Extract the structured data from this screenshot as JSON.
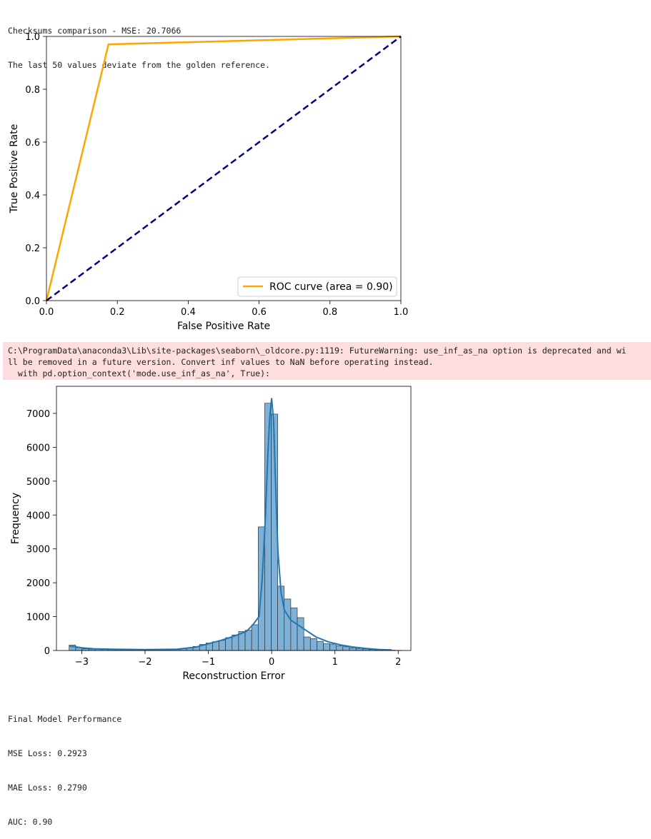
{
  "output_top": {
    "lines": [
      "Checksums comparison - MSE: 20.7066",
      "The last 50 values deviate from the golden reference."
    ]
  },
  "warning": {
    "lines": [
      "C:\\ProgramData\\anaconda3\\Lib\\site-packages\\seaborn\\_oldcore.py:1119: FutureWarning: use_inf_as_na option is deprecated and wi",
      "ll be removed in a future version. Convert inf values to NaN before operating instead.",
      "  with pd.option_context('mode.use_inf_as_na', True):"
    ]
  },
  "output_bottom": {
    "lines": [
      "Final Model Performance",
      "MSE Loss: 0.2923",
      "MAE Loss: 0.2790",
      "AUC: 0.90"
    ]
  },
  "colors": {
    "roc": "#ffa500",
    "diag": "#000080",
    "hist_fill": "#7fb0d5",
    "kde": "#1f77b4",
    "warning_bg": "#fddddd"
  },
  "chart_data": [
    {
      "type": "line",
      "title": "",
      "xlabel": "False Positive Rate",
      "ylabel": "True Positive Rate",
      "xlim": [
        0,
        1
      ],
      "ylim": [
        0,
        1
      ],
      "xticks": [
        "0.0",
        "0.2",
        "0.4",
        "0.6",
        "0.8",
        "1.0"
      ],
      "yticks": [
        "0.0",
        "0.2",
        "0.4",
        "0.6",
        "0.8",
        "1.0"
      ],
      "grid": false,
      "legend_position": "lower-right",
      "series": [
        {
          "name": "ROC curve (area = 0.90)",
          "x": [
            0,
            0.175,
            1
          ],
          "y": [
            0,
            0.97,
            1
          ],
          "color": "#ffa500",
          "style": "solid"
        },
        {
          "x": [
            0,
            1
          ],
          "y": [
            0,
            1
          ],
          "color": "#000080",
          "style": "dashed"
        }
      ]
    },
    {
      "type": "bar",
      "title": "",
      "xlabel": "Reconstruction Error",
      "ylabel": "Frequency",
      "xlim": [
        -3.4,
        2.2
      ],
      "ylim": [
        0,
        7800
      ],
      "xticks": [
        "−3",
        "−2",
        "−1",
        "0",
        "1",
        "2"
      ],
      "yticks": [
        "0",
        "1000",
        "2000",
        "3000",
        "4000",
        "5000",
        "6000",
        "7000"
      ],
      "grid": false,
      "bin_start": -3.2,
      "bin_width": 0.103,
      "values": [
        160,
        80,
        50,
        40,
        40,
        35,
        30,
        25,
        25,
        25,
        20,
        20,
        20,
        25,
        25,
        30,
        40,
        60,
        80,
        120,
        180,
        220,
        260,
        300,
        380,
        460,
        560,
        600,
        760,
        3650,
        7300,
        6980,
        1900,
        1520,
        1260,
        970,
        400,
        350,
        270,
        200,
        190,
        140,
        110,
        80,
        60,
        45,
        30,
        20,
        15,
        10,
        5
      ],
      "kde": {
        "x": [
          -3.2,
          -3.1,
          -3.0,
          -2.8,
          -2.5,
          -2.0,
          -1.5,
          -1.2,
          -1.0,
          -0.8,
          -0.6,
          -0.4,
          -0.3,
          -0.2,
          -0.15,
          -0.1,
          -0.06,
          -0.03,
          0.0,
          0.03,
          0.06,
          0.1,
          0.15,
          0.2,
          0.3,
          0.5,
          0.7,
          0.9,
          1.1,
          1.3,
          1.5,
          1.7,
          1.9
        ],
        "y": [
          120,
          110,
          80,
          50,
          35,
          25,
          35,
          100,
          200,
          300,
          420,
          560,
          750,
          1000,
          2100,
          3900,
          5800,
          6900,
          7450,
          6800,
          5000,
          2900,
          1700,
          1200,
          900,
          650,
          400,
          250,
          160,
          100,
          60,
          30,
          15
        ]
      }
    }
  ]
}
